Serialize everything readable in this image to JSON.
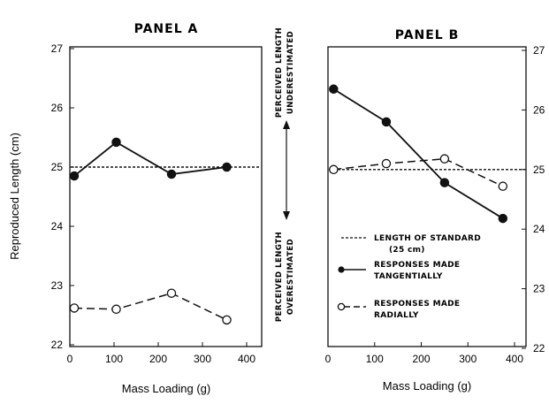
{
  "chart_data": [
    {
      "type": "line",
      "title": "PANEL A",
      "xlabel": "Mass Loading (g)",
      "ylabel": "Reproduced Length (cm)",
      "xlim": [
        0,
        400
      ],
      "ylim": [
        22,
        27
      ],
      "xticks": [
        0,
        100,
        200,
        300,
        400
      ],
      "yticks": [
        22,
        23,
        24,
        25,
        26,
        27
      ],
      "reference_line": 25,
      "series": [
        {
          "name": "RESPONSES MADE TANGENTIALLY",
          "marker": "filled",
          "x": [
            10,
            105,
            230,
            355
          ],
          "y": [
            24.85,
            25.42,
            24.88,
            25.0
          ]
        },
        {
          "name": "RESPONSES MADE RADIALLY",
          "marker": "open",
          "x": [
            10,
            105,
            230,
            355
          ],
          "y": [
            22.62,
            22.6,
            22.87,
            22.42
          ]
        }
      ]
    },
    {
      "type": "line",
      "title": "PANEL B",
      "xlabel": "Mass Loading (g)",
      "xlim": [
        0,
        400
      ],
      "ylim": [
        22,
        27
      ],
      "xticks": [
        0,
        100,
        200,
        300,
        400
      ],
      "yticks": [
        22,
        23,
        24,
        25,
        26,
        27
      ],
      "reference_line": 25,
      "series": [
        {
          "name": "RESPONSES MADE TANGENTIALLY",
          "marker": "filled",
          "x": [
            12,
            125,
            250,
            375
          ],
          "y": [
            26.35,
            25.8,
            24.78,
            24.18
          ]
        },
        {
          "name": "RESPONSES MADE RADIALLY",
          "marker": "open",
          "x": [
            12,
            125,
            250,
            375
          ],
          "y": [
            25.0,
            25.1,
            25.18,
            24.72
          ]
        }
      ]
    }
  ],
  "middle": {
    "upper_line1": "PERCEIVED LENGTH",
    "upper_line2": "UNDERESTIMATED",
    "lower_line1": "PERCEIVED LENGTH",
    "lower_line2": "OVERESTIMATED"
  },
  "legend": {
    "standard_line1": "LENGTH OF STANDARD",
    "standard_line2": "(25 cm)",
    "tangential_line1": "RESPONSES MADE",
    "tangential_line2": "TANGENTIALLY",
    "radial_line1": "RESPONSES MADE",
    "radial_line2": "RADIALLY"
  }
}
